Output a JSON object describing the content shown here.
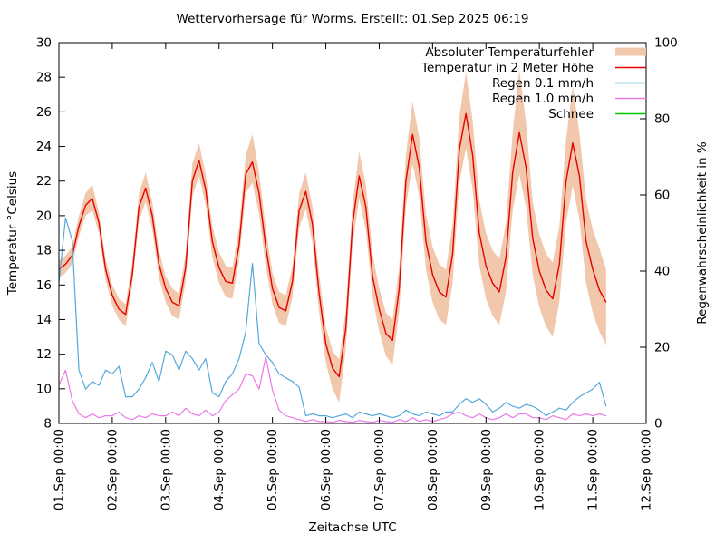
{
  "title": "Wettervorhersage für Worms. Erstellt: 01.Sep 2025 06:19",
  "axes": {
    "x": {
      "label": "Zeitachse UTC",
      "tick_labels": [
        "01.Sep 00:00",
        "02.Sep 00:00",
        "03.Sep 00:00",
        "04.Sep 00:00",
        "05.Sep 00:00",
        "06.Sep 00:00",
        "07.Sep 00:00",
        "08.Sep 00:00",
        "09.Sep 00:00",
        "10.Sep 00:00",
        "11.Sep 00:00",
        "12.Sep 00:00"
      ],
      "range_hours": [
        0,
        264
      ],
      "hours_per_tick": 24
    },
    "y_left": {
      "label": "Temperatur °Celsius",
      "ticks": [
        8,
        10,
        12,
        14,
        16,
        18,
        20,
        22,
        24,
        26,
        28,
        30
      ],
      "range": [
        8,
        30
      ]
    },
    "y_right": {
      "label": "Regenwahrscheinlichkeit in %",
      "ticks": [
        0,
        20,
        40,
        60,
        80,
        100
      ],
      "range": [
        0,
        100
      ]
    }
  },
  "legend": {
    "position": "top-right-inside",
    "items": [
      {
        "label": "Absoluter Temperaturfehler",
        "swatch": "band",
        "color": "#f2c8ad"
      },
      {
        "label": "Temperatur in 2 Meter Höhe",
        "swatch": "line",
        "color": "#e60000"
      },
      {
        "label": "Regen 0.1 mm/h",
        "swatch": "line",
        "color": "#56a8dc"
      },
      {
        "label": "Regen 1.0 mm/h",
        "swatch": "line",
        "color": "#ea7ae6"
      },
      {
        "label": "Schnee",
        "swatch": "line",
        "color": "#00c800"
      }
    ]
  },
  "colors": {
    "background": "#ffffff",
    "axis": "#000000",
    "temperature_line": "#e60000",
    "temperature_error_band": "#f2c8ad",
    "rain_01": "#56a8dc",
    "rain_10": "#ea7ae6",
    "snow": "#00c800"
  },
  "chart_data": {
    "type": "line",
    "title": "Wettervorhersage für Worms. Erstellt: 01.Sep 2025 06:19",
    "xlabel": "Zeitachse UTC",
    "ylabel_left": "Temperatur °Celsius",
    "ylabel_right": "Regenwahrscheinlichkeit in %",
    "x_range_hours": [
      0,
      264
    ],
    "ylim_left": [
      8,
      30
    ],
    "ylim_right": [
      0,
      100
    ],
    "grid": false,
    "legend_position": "top-right-inside",
    "x_hours": [
      0,
      3,
      6,
      9,
      12,
      15,
      18,
      21,
      24,
      27,
      30,
      33,
      36,
      39,
      42,
      45,
      48,
      51,
      54,
      57,
      60,
      63,
      66,
      69,
      72,
      75,
      78,
      81,
      84,
      87,
      90,
      93,
      96,
      99,
      102,
      105,
      108,
      111,
      114,
      117,
      120,
      123,
      126,
      129,
      132,
      135,
      138,
      141,
      144,
      147,
      150,
      153,
      156,
      159,
      162,
      165,
      168,
      171,
      174,
      177,
      180,
      183,
      186,
      189,
      192,
      195,
      198,
      201,
      204,
      207,
      210,
      213,
      216,
      219,
      222,
      225,
      228,
      231,
      234,
      237,
      240,
      243,
      246
    ],
    "series": [
      {
        "name": "Absoluter Temperaturfehler",
        "type": "band",
        "axis": "left",
        "color": "#f2c8ad",
        "upper": [
          17.4,
          17.7,
          18.2,
          20.0,
          21.3,
          21.8,
          20.2,
          17.5,
          16.0,
          15.2,
          14.9,
          17.3,
          21.3,
          22.5,
          20.8,
          18.0,
          16.5,
          15.8,
          15.5,
          17.8,
          23.0,
          24.2,
          22.4,
          19.4,
          17.9,
          17.1,
          17.0,
          19.3,
          23.5,
          24.7,
          22.5,
          19.3,
          16.7,
          15.6,
          15.4,
          17.1,
          21.3,
          22.5,
          20.5,
          16.6,
          13.6,
          12.2,
          11.7,
          14.6,
          20.7,
          23.7,
          21.8,
          17.8,
          15.8,
          14.4,
          14.0,
          17.1,
          23.5,
          26.6,
          24.5,
          20.1,
          18.2,
          17.2,
          16.9,
          19.5,
          25.7,
          28.3,
          25.5,
          20.9,
          19.0,
          18.0,
          17.5,
          19.6,
          24.8,
          28.4,
          25.4,
          20.8,
          18.9,
          17.8,
          17.3,
          19.4,
          24.4,
          27.5,
          24.8,
          20.9,
          19.2,
          18.1,
          16.9
        ],
        "lower": [
          16.4,
          16.7,
          17.2,
          18.8,
          20.0,
          20.3,
          19.0,
          16.3,
          14.8,
          14.0,
          13.6,
          16.0,
          19.7,
          20.8,
          19.2,
          16.4,
          15.0,
          14.2,
          14.0,
          16.2,
          21.1,
          22.3,
          20.6,
          17.6,
          16.1,
          15.3,
          15.2,
          17.4,
          21.3,
          21.9,
          20.1,
          17.1,
          14.9,
          13.8,
          13.6,
          15.3,
          19.3,
          20.4,
          18.4,
          14.4,
          11.5,
          10.0,
          9.2,
          12.3,
          18.3,
          21.0,
          19.2,
          15.3,
          13.3,
          11.9,
          11.4,
          14.5,
          20.5,
          23.0,
          21.1,
          16.9,
          15.0,
          14.0,
          13.7,
          16.1,
          21.9,
          23.9,
          21.5,
          17.1,
          15.2,
          14.2,
          13.7,
          15.6,
          20.3,
          22.4,
          20.5,
          16.6,
          14.7,
          13.6,
          13.0,
          15.0,
          19.6,
          21.7,
          19.8,
          16.1,
          14.4,
          13.3,
          12.5
        ]
      },
      {
        "name": "Temperatur in 2 Meter Höhe",
        "type": "line",
        "axis": "left",
        "color": "#e60000",
        "values": [
          16.9,
          17.2,
          17.7,
          19.4,
          20.6,
          21.0,
          19.6,
          16.9,
          15.4,
          14.6,
          14.3,
          16.6,
          20.5,
          21.6,
          20.0,
          17.2,
          15.8,
          15.0,
          14.8,
          17.0,
          22.0,
          23.2,
          21.5,
          18.5,
          17.0,
          16.2,
          16.1,
          18.3,
          22.4,
          23.1,
          21.3,
          18.2,
          15.8,
          14.7,
          14.5,
          16.2,
          20.3,
          21.4,
          19.5,
          15.5,
          12.6,
          11.2,
          10.7,
          13.5,
          19.5,
          22.3,
          20.5,
          16.5,
          14.6,
          13.2,
          12.8,
          15.8,
          22.0,
          24.7,
          22.8,
          18.5,
          16.6,
          15.6,
          15.3,
          17.8,
          23.8,
          25.9,
          23.5,
          19.0,
          17.1,
          16.1,
          15.6,
          17.6,
          22.5,
          24.8,
          22.8,
          18.7,
          16.8,
          15.7,
          15.2,
          17.2,
          22.0,
          24.2,
          22.3,
          18.5,
          16.9,
          15.7,
          15.0
        ]
      },
      {
        "name": "Regen 0.1 mm/h",
        "type": "line",
        "axis": "right",
        "color": "#56a8dc",
        "values": [
          37,
          54,
          48,
          14,
          9,
          11,
          10,
          14,
          13,
          15,
          7,
          7,
          9,
          12,
          16,
          11,
          19,
          18,
          14,
          19,
          17,
          14,
          17,
          8,
          7,
          11,
          13,
          17,
          24,
          42,
          21,
          18,
          16,
          13,
          12,
          11,
          9.5,
          2,
          2.5,
          2,
          2,
          1.5,
          2,
          2.5,
          1.5,
          3,
          2.5,
          2,
          2.5,
          2,
          1.5,
          2,
          3.5,
          2.5,
          2,
          3,
          2.5,
          2,
          3,
          3,
          5,
          6.5,
          5.5,
          6.5,
          5,
          3,
          4,
          5.5,
          4.5,
          4,
          5,
          4.5,
          3.5,
          2,
          3,
          4,
          3.5,
          5.5,
          7,
          8,
          9,
          10.8,
          4.5
        ]
      },
      {
        "name": "Regen 1.0 mm/h",
        "type": "line",
        "axis": "right",
        "color": "#ea7ae6",
        "values": [
          10,
          14,
          6,
          2.5,
          1.5,
          2.5,
          1.5,
          2,
          2,
          3,
          1.5,
          1,
          2,
          1.5,
          2.5,
          2,
          2,
          3,
          2,
          4,
          2.5,
          2,
          3.5,
          2,
          3,
          6,
          7.5,
          9,
          13,
          12.5,
          9,
          17.5,
          8.8,
          3.5,
          2,
          1.5,
          1,
          0.5,
          1,
          0.5,
          0.5,
          0.3,
          0.8,
          0.5,
          0.3,
          0.8,
          0.5,
          0.3,
          0.8,
          0.5,
          0.3,
          1,
          0.5,
          1.5,
          0.5,
          1,
          0.5,
          1,
          1.5,
          2.5,
          3,
          2,
          1.5,
          2.5,
          1.5,
          1,
          1.5,
          2.5,
          1.5,
          2.5,
          2.5,
          1.5,
          1.5,
          1,
          2,
          1.5,
          1,
          2.5,
          2,
          2.5,
          2,
          2.5,
          2
        ]
      },
      {
        "name": "Schnee",
        "type": "line",
        "axis": "right",
        "color": "#00c800",
        "values": []
      }
    ]
  }
}
